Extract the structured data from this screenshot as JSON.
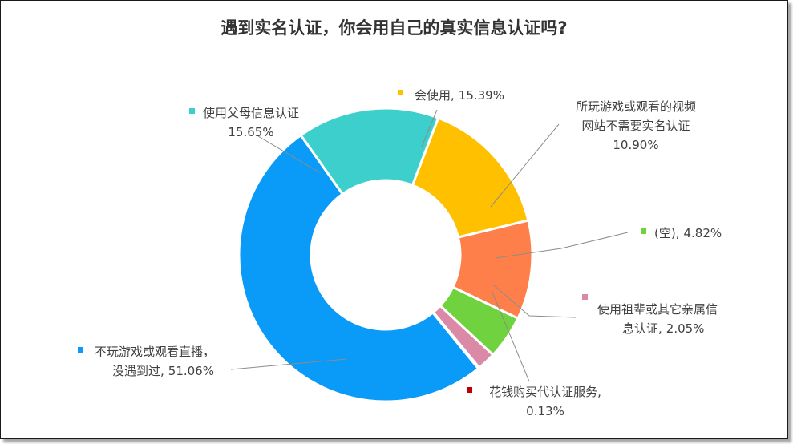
{
  "chart_data": {
    "type": "pie",
    "donut": true,
    "title": "遇到实名认证，你会用自己的真实信息认证吗?",
    "slices": [
      {
        "id": "s1",
        "label": "会使用,",
        "value": 15.39,
        "value_text": "15.39%",
        "color": "#FFC000"
      },
      {
        "id": "s2",
        "label": "所玩游戏或观看的视频网站不需要实名认证",
        "value": 10.9,
        "value_text": "10.90%",
        "color": "#FF7F4A"
      },
      {
        "id": "s3",
        "label": "(空),",
        "value": 4.82,
        "value_text": "4.82%",
        "color": "#71D23F"
      },
      {
        "id": "s4",
        "label": "使用祖辈或其它亲属信息认证,",
        "value": 2.05,
        "value_text": "2.05%",
        "color": "#DA8AA7"
      },
      {
        "id": "s5",
        "label": "花钱购买代认证服务,",
        "value": 0.13,
        "value_text": "0.13%",
        "color": "#C00000"
      },
      {
        "id": "s6",
        "label": "不玩游戏或观看直播，没遇到过,",
        "value": 51.06,
        "value_text": "51.06%",
        "color": "#0A9AF7"
      },
      {
        "id": "s7",
        "label": "使用父母信息认证",
        "value": 15.65,
        "value_text": "15.65%",
        "color": "#3CCFCC"
      }
    ],
    "label_lines": {
      "s1": [
        "会使用,",
        "15.39%"
      ],
      "s2": [
        "所玩游戏或观看的视频",
        "网站不需要实名认证",
        "10.90%"
      ],
      "s3": [
        "(空),",
        "4.82%"
      ],
      "s4": [
        "使用祖辈或其它亲属信",
        "息认证,",
        "2.05%"
      ],
      "s5": [
        "花钱购买代认证服务,",
        "0.13%"
      ],
      "s6": [
        "不玩游戏或观看直播，",
        "没遇到过,",
        "51.06%"
      ],
      "s7": [
        "使用父母信息认证",
        "15.65%"
      ]
    }
  }
}
